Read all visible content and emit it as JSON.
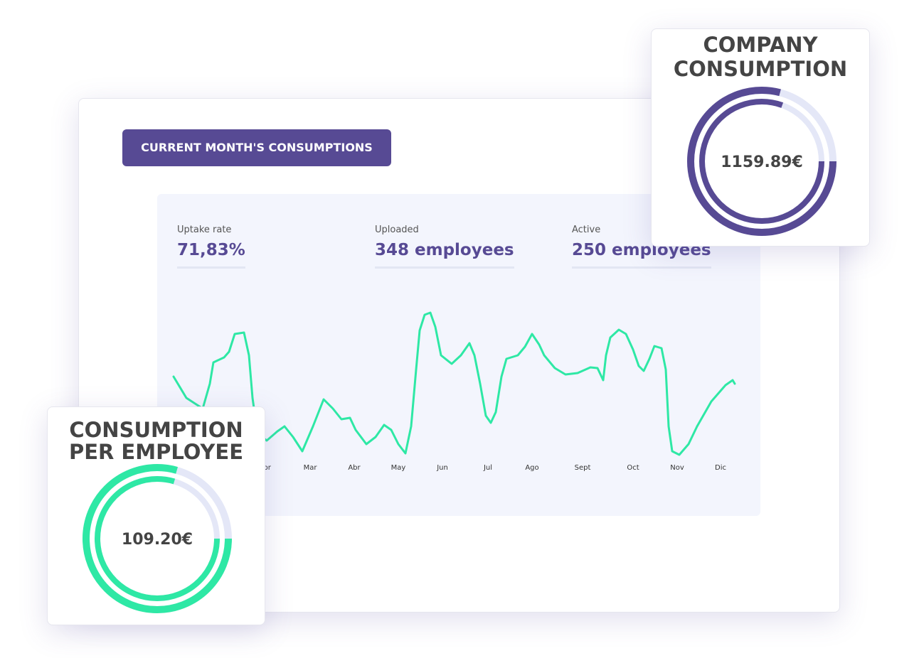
{
  "badge": "CURRENT MONTH'S CONSUMPTIONS",
  "stats": [
    {
      "label": "Uptake rate",
      "value": "71,83%"
    },
    {
      "label": "Uploaded",
      "value": "348 employees"
    },
    {
      "label": "Active",
      "value": "250 employees"
    }
  ],
  "months": [
    "Febr",
    "Mar",
    "Abr",
    "May",
    "Jun",
    "Jul",
    "Ago",
    "Sept",
    "Oct",
    "Nov",
    "Dic"
  ],
  "company_card": {
    "title_lines": [
      "COMPANY",
      "CONSUMPTION"
    ],
    "value": "1159.89€"
  },
  "employee_card": {
    "title_lines": [
      "CONSUMPTION",
      "PER EMPLOYEE"
    ],
    "value": "109.20€"
  }
}
